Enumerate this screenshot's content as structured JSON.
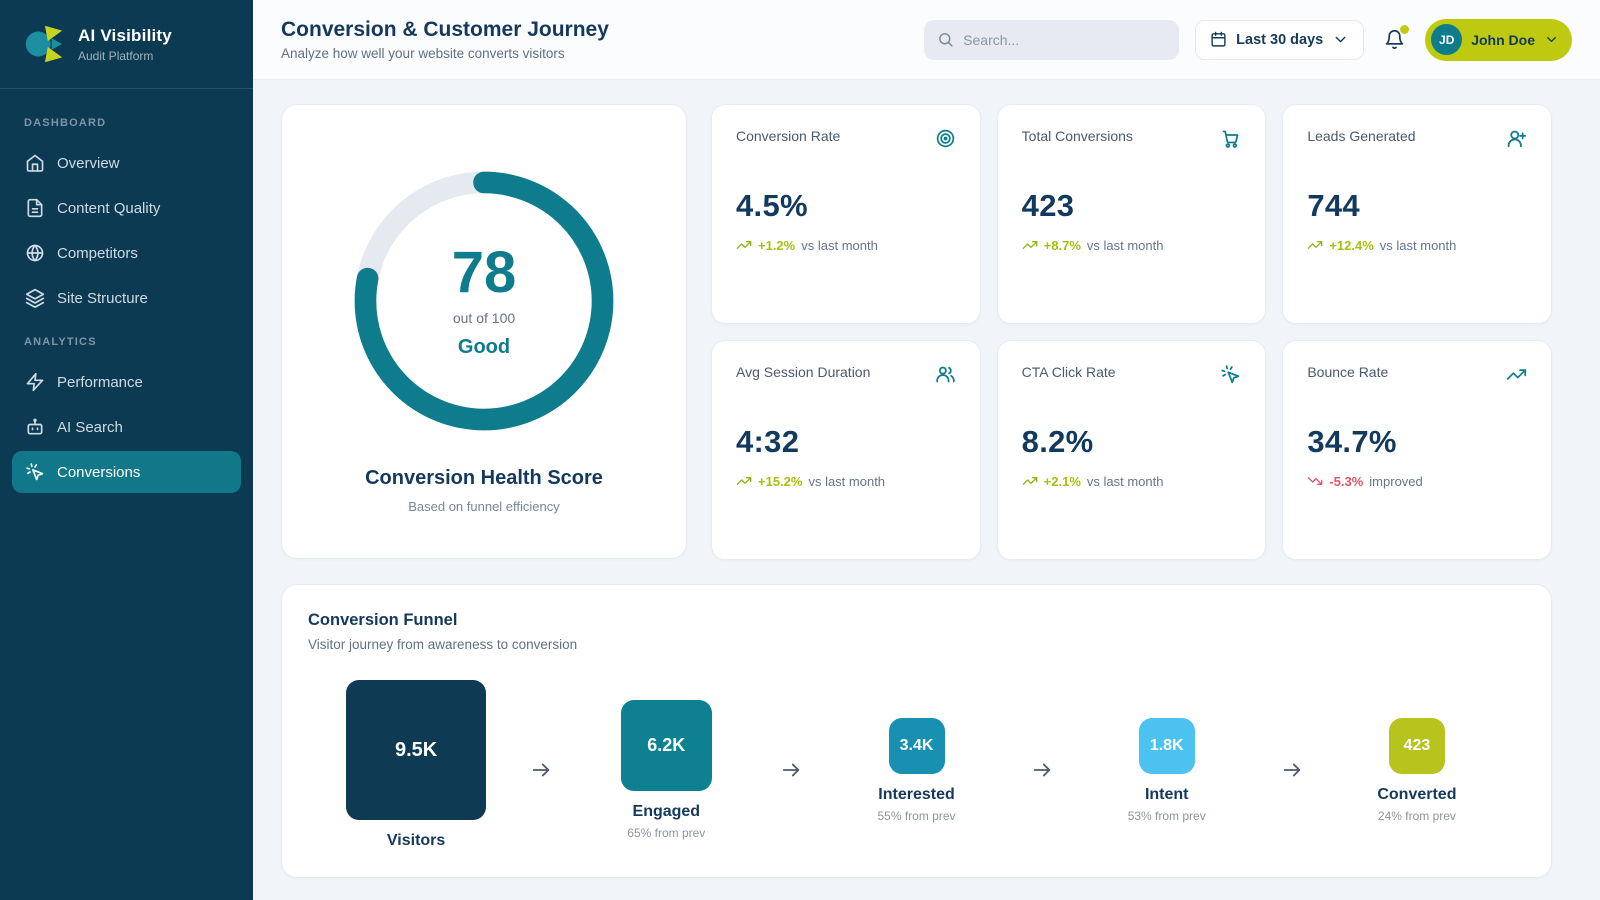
{
  "colors": {
    "sidebar_bg": "#0c3a53",
    "accent_teal": "#0e7c8c",
    "accent_yellow_green": "#bdca10",
    "positive_trend": "#a9bf0e",
    "negative_trend": "#e25563",
    "heading_navy": "#14395c"
  },
  "sidebar": {
    "app_name": "AI Visibility",
    "app_subtitle": "Audit Platform",
    "logo_icon": "ai-visibility-logo",
    "sections": [
      {
        "title": "DASHBOARD",
        "items": [
          {
            "label": "Overview",
            "icon": "home-icon",
            "active": false
          },
          {
            "label": "Content Quality",
            "icon": "document-icon",
            "active": false
          },
          {
            "label": "Competitors",
            "icon": "globe-icon",
            "active": false
          },
          {
            "label": "Site Structure",
            "icon": "layers-icon",
            "active": false
          }
        ]
      },
      {
        "title": "ANALYTICS",
        "items": [
          {
            "label": "Performance",
            "icon": "lightning-icon",
            "active": false
          },
          {
            "label": "AI Search",
            "icon": "bot-icon",
            "active": false
          },
          {
            "label": "Conversions",
            "icon": "cursor-click-icon",
            "active": true
          }
        ]
      }
    ]
  },
  "header": {
    "title": "Conversion & Customer Journey",
    "subtitle": "Analyze how well your website converts visitors",
    "search_placeholder": "Search...",
    "search_icon": "search-icon",
    "date_range": "Last 30 days",
    "date_icon": "calendar-icon",
    "bell_icon": "bell-icon",
    "has_unread_notification": true,
    "user": {
      "initials": "JD",
      "name": "John Doe"
    }
  },
  "health": {
    "score": 78,
    "score_max_label": "out of 100",
    "status": "Good",
    "title": "Conversion Health Score",
    "subtitle": "Based on funnel efficiency"
  },
  "metrics": [
    {
      "label": "Conversion Rate",
      "icon": "target-icon",
      "value": "4.5%",
      "trend": "+1.2%",
      "suffix": "vs last month",
      "direction": "up"
    },
    {
      "label": "Total Conversions",
      "icon": "cart-icon",
      "value": "423",
      "trend": "+8.7%",
      "suffix": "vs last month",
      "direction": "up"
    },
    {
      "label": "Leads Generated",
      "icon": "user-plus-icon",
      "value": "744",
      "trend": "+12.4%",
      "suffix": "vs last month",
      "direction": "up"
    },
    {
      "label": "Avg Session Duration",
      "icon": "users-icon",
      "value": "4:32",
      "trend": "+15.2%",
      "suffix": "vs last month",
      "direction": "up"
    },
    {
      "label": "CTA Click Rate",
      "icon": "cursor-click-icon",
      "value": "8.2%",
      "trend": "+2.1%",
      "suffix": "vs last month",
      "direction": "up"
    },
    {
      "label": "Bounce Rate",
      "icon": "trending-up-icon",
      "value": "34.7%",
      "trend": "-5.3%",
      "suffix": "improved",
      "direction": "down"
    }
  ],
  "funnel": {
    "title": "Conversion Funnel",
    "subtitle": "Visitor journey from awareness to conversion",
    "stages": [
      {
        "label": "Visitors",
        "display": "9.5K",
        "value": 9500,
        "sub": "",
        "color": "#0e3a54"
      },
      {
        "label": "Engaged",
        "display": "6.2K",
        "value": 6200,
        "sub": "65% from prev",
        "color": "#0e8191"
      },
      {
        "label": "Interested",
        "display": "3.4K",
        "value": 3400,
        "sub": "55% from prev",
        "color": "#1790b2"
      },
      {
        "label": "Intent",
        "display": "1.8K",
        "value": 1800,
        "sub": "53% from prev",
        "color": "#4cc2f1"
      },
      {
        "label": "Converted",
        "display": "423",
        "value": 423,
        "sub": "24% from prev",
        "color": "#b6c41d"
      }
    ]
  }
}
